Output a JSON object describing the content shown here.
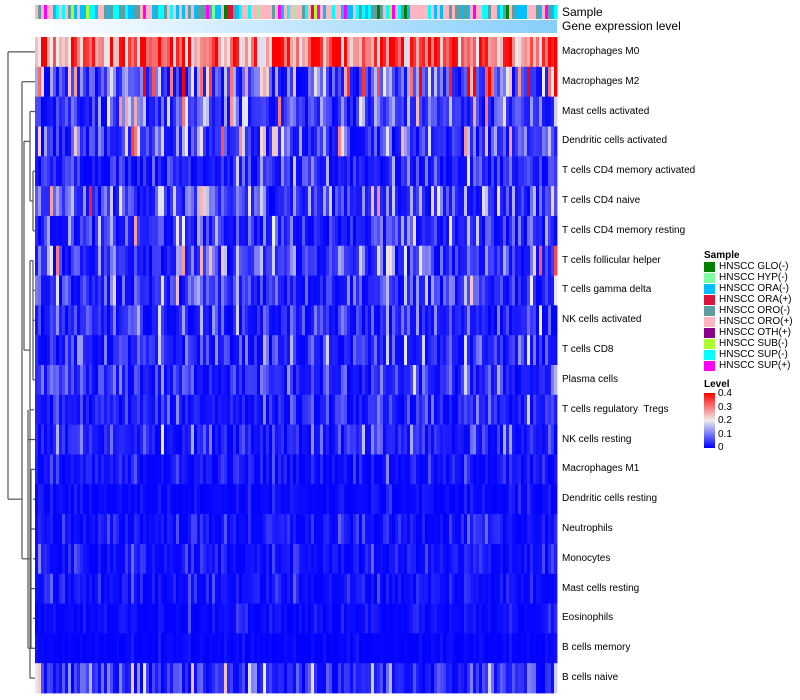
{
  "chart_data": {
    "type": "heatmap",
    "annotations": [
      "Sample",
      "Gene expression level"
    ],
    "rows": [
      "Macrophages M0",
      "Macrophages M2",
      "Mast cells activated",
      "Dendritic cells activated",
      "T cells CD4 memory activated",
      "T cells CD4 naive",
      "T cells CD4 memory resting",
      "T cells follicular helper",
      "T cells gamma delta",
      "NK cells activated",
      "T cells CD8",
      "Plasma cells",
      "T cells regulatory  Tregs",
      "NK cells resting",
      "Macrophages M1",
      "Dendritic cells resting",
      "Neutrophils",
      "Monocytes",
      "Mast cells resting",
      "Eosinophils",
      "B cells memory",
      "B cells naive"
    ],
    "row_mean_level": [
      0.33,
      0.15,
      0.08,
      0.08,
      0.04,
      0.08,
      0.05,
      0.07,
      0.06,
      0.04,
      0.04,
      0.04,
      0.03,
      0.04,
      0.02,
      0.01,
      0.02,
      0.02,
      0.02,
      0.012,
      0.006,
      0.06
    ],
    "n_columns": 174,
    "color_scale": {
      "min": 0,
      "max": 0.4,
      "stops": [
        [
          0,
          "#0000ff"
        ],
        [
          0.2,
          "#eeeeee"
        ],
        [
          0.4,
          "#ff0000"
        ]
      ]
    },
    "sample_legend": {
      "title": "Sample",
      "items": [
        {
          "label": "HNSCC GLO(-)",
          "color": "#008000"
        },
        {
          "label": "HNSCC HYP(-)",
          "color": "#7fffa0"
        },
        {
          "label": "HNSCC ORA(-)",
          "color": "#00bfff"
        },
        {
          "label": "HNSCC ORA(+)",
          "color": "#dc143c"
        },
        {
          "label": "HNSCC ORO(-)",
          "color": "#5f9ea0"
        },
        {
          "label": "HNSCC ORO(+)",
          "color": "#ffb6c1"
        },
        {
          "label": "HNSCC OTH(+)",
          "color": "#8b008b"
        },
        {
          "label": "HNSCC SUB(-)",
          "color": "#adff2f"
        },
        {
          "label": "HNSCC SUP(-)",
          "color": "#00ffff"
        },
        {
          "label": "HNSCC SUP(+)",
          "color": "#ff00ff"
        }
      ]
    },
    "level_legend": {
      "title": "Level",
      "ticks": [
        "0.4",
        "0.3",
        "0.2",
        "0.1",
        "0"
      ]
    }
  }
}
